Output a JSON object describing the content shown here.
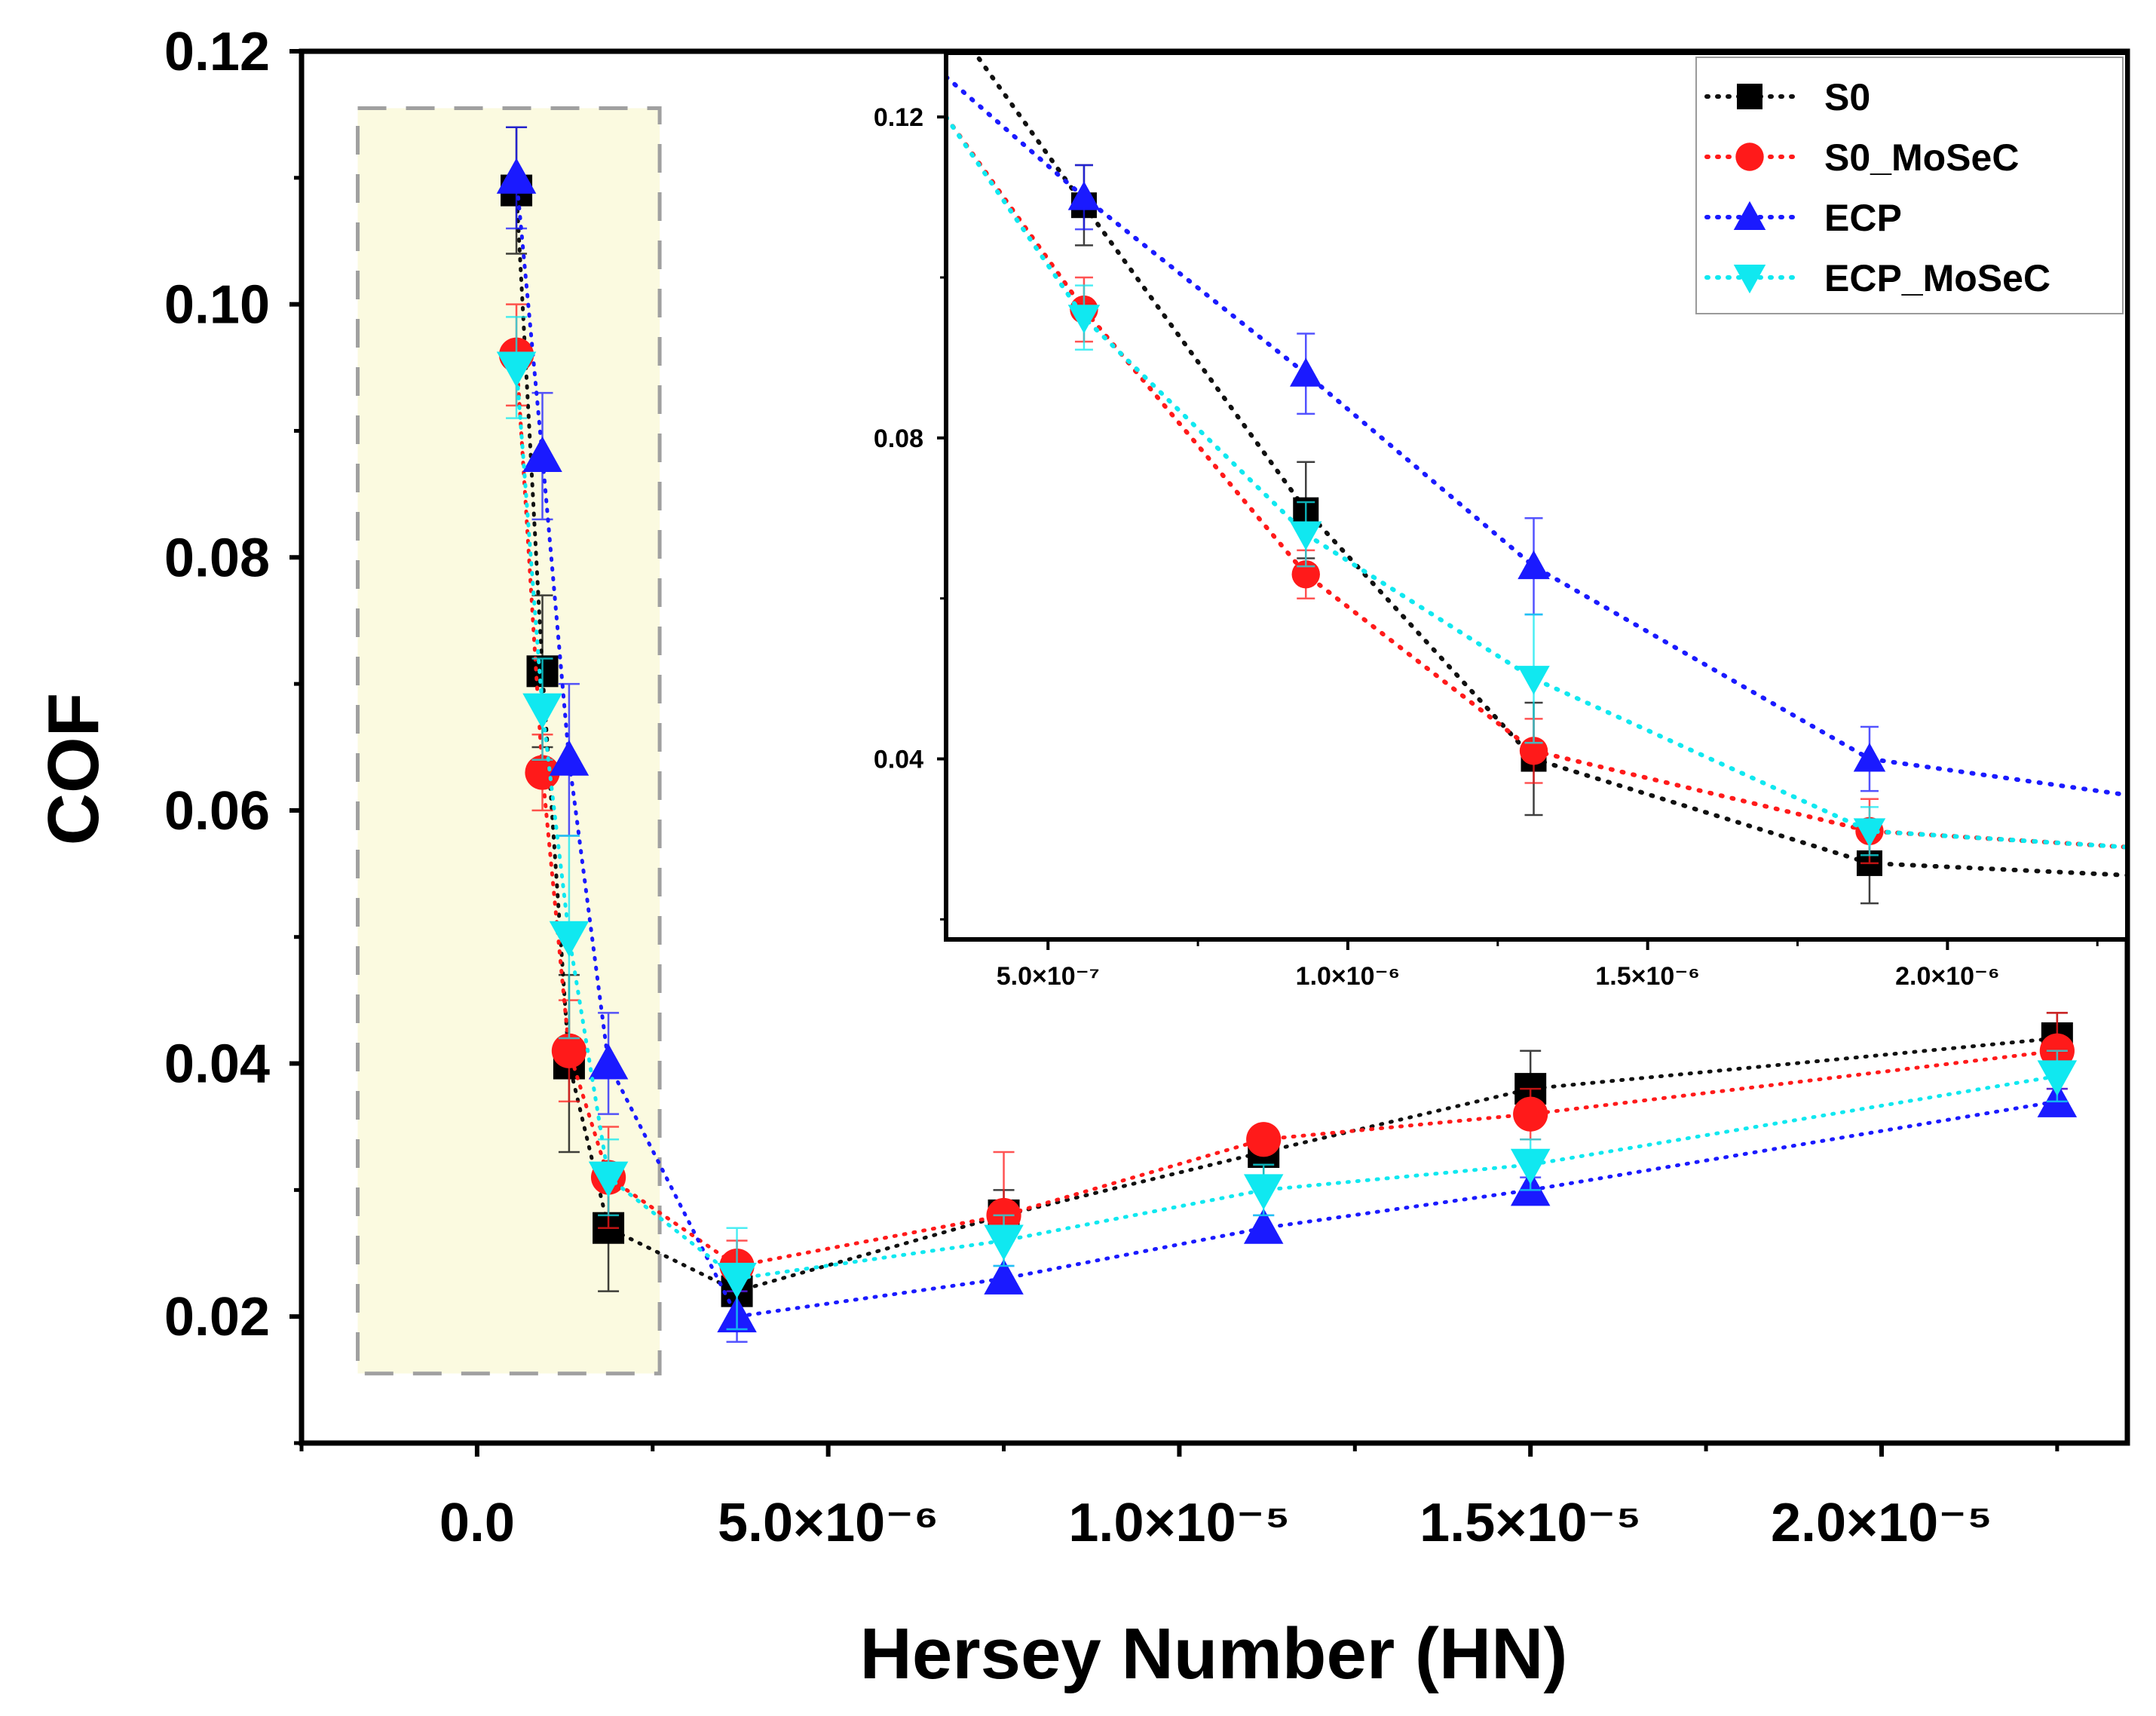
{
  "chart_data": [
    {
      "id": "main",
      "type": "scatter",
      "xlabel": "Hersey Number (HN)",
      "ylabel": "COF",
      "xlim": [
        -2.5e-06,
        2.35e-05
      ],
      "ylim": [
        0.01,
        0.12
      ],
      "xticks": [
        0,
        5e-06,
        1e-05,
        1.5e-05,
        2e-05
      ],
      "xtick_labels": [
        "0.0",
        "5.0×10⁻⁶",
        "1.0×10⁻⁵",
        "1.5×10⁻⁵",
        "2.0×10⁻⁵"
      ],
      "yticks": [
        0.02,
        0.04,
        0.06,
        0.08,
        0.1,
        0.12
      ],
      "ytick_labels": [
        "0.02",
        "0.04",
        "0.06",
        "0.08",
        "0.10",
        "0.12"
      ],
      "highlight_region": {
        "x": [
          -1.7e-06,
          2.6e-06
        ],
        "y": [
          0.0155,
          0.1155
        ],
        "color": "#fbfae0"
      },
      "series": [
        {
          "name": "S0",
          "color": "#000000",
          "marker": "square",
          "line_color": "#111111",
          "x": [
            5.6e-07,
            9.3e-07,
            1.31e-06,
            1.87e-06,
            3.7e-06,
            7.5e-06,
            1.12e-05,
            1.5e-05,
            2.25e-05
          ],
          "y": [
            0.109,
            0.071,
            0.04,
            0.027,
            0.022,
            0.028,
            0.033,
            0.038,
            0.042
          ],
          "err": [
            0.005,
            0.006,
            0.007,
            0.005,
            0.002,
            0.002,
            0.002,
            0.003,
            0.002
          ]
        },
        {
          "name": "S0_MoSeC",
          "color": "#ff1a1a",
          "marker": "circle",
          "line_color": "#ff1a1a",
          "x": [
            5.6e-07,
            9.3e-07,
            1.31e-06,
            1.87e-06,
            3.7e-06,
            7.5e-06,
            1.12e-05,
            1.5e-05,
            2.25e-05
          ],
          "y": [
            0.096,
            0.063,
            0.041,
            0.031,
            0.024,
            0.028,
            0.034,
            0.036,
            0.041
          ],
          "err": [
            0.004,
            0.003,
            0.004,
            0.004,
            0.002,
            0.005,
            0.001,
            0.002,
            0.003
          ]
        },
        {
          "name": "ECP",
          "color": "#1a1aff",
          "marker": "triangle-up",
          "line_color": "#1a1aff",
          "x": [
            5.6e-07,
            9.3e-07,
            1.31e-06,
            1.87e-06,
            3.7e-06,
            7.5e-06,
            1.12e-05,
            1.5e-05,
            2.25e-05
          ],
          "y": [
            0.11,
            0.088,
            0.064,
            0.04,
            0.02,
            0.023,
            0.027,
            0.03,
            0.037
          ],
          "err": [
            0.004,
            0.005,
            0.006,
            0.004,
            0.002,
            0.001,
            0.001,
            0.001,
            0.001
          ]
        },
        {
          "name": "ECP_MoSeC",
          "color": "#10e8f0",
          "marker": "triangle-down",
          "line_color": "#10e8f0",
          "x": [
            5.6e-07,
            9.3e-07,
            1.31e-06,
            1.87e-06,
            3.7e-06,
            7.5e-06,
            1.12e-05,
            1.5e-05,
            2.25e-05
          ],
          "y": [
            0.095,
            0.068,
            0.05,
            0.031,
            0.023,
            0.026,
            0.03,
            0.032,
            0.039
          ],
          "err": [
            0.004,
            0.004,
            0.008,
            0.003,
            0.004,
            0.002,
            0.002,
            0.002,
            0.002
          ]
        }
      ]
    },
    {
      "id": "inset",
      "type": "scatter",
      "xlim": [
        3.3e-07,
        2.3e-06
      ],
      "ylim": [
        0.0175,
        0.128
      ],
      "xticks": [
        5e-07,
        1e-06,
        1.5e-06,
        2e-06
      ],
      "xtick_labels": [
        "5.0×10⁻⁷",
        "1.0×10⁻⁶",
        "1.5×10⁻⁶",
        "2.0×10⁻⁶"
      ],
      "yticks": [
        0.04,
        0.08,
        0.12
      ],
      "ytick_labels": [
        "0.04",
        "0.08",
        "0.12"
      ],
      "legend_position": "top-right",
      "series": [
        {
          "name": "S0",
          "color": "#000000",
          "marker": "square",
          "line_color": "#111111",
          "x": [
            5.6e-07,
            9.3e-07,
            1.31e-06,
            1.87e-06
          ],
          "y": [
            0.109,
            0.071,
            0.04,
            0.027
          ],
          "err": [
            0.005,
            0.006,
            0.007,
            0.005
          ],
          "trend": [
            [
              3.3e-07,
              0.133
            ],
            [
              5.6e-07,
              0.109
            ],
            [
              9.3e-07,
              0.071
            ],
            [
              1.31e-06,
              0.04
            ],
            [
              1.87e-06,
              0.027
            ],
            [
              2.3e-06,
              0.0255
            ]
          ]
        },
        {
          "name": "S0_MoSeC",
          "color": "#ff1a1a",
          "marker": "circle",
          "line_color": "#ff1a1a",
          "x": [
            5.6e-07,
            9.3e-07,
            1.31e-06,
            1.87e-06
          ],
          "y": [
            0.096,
            0.063,
            0.041,
            0.031
          ],
          "err": [
            0.004,
            0.003,
            0.004,
            0.004
          ],
          "trend": [
            [
              3.3e-07,
              0.12
            ],
            [
              5.6e-07,
              0.096
            ],
            [
              9.3e-07,
              0.063
            ],
            [
              1.31e-06,
              0.041
            ],
            [
              1.87e-06,
              0.031
            ],
            [
              2.3e-06,
              0.029
            ]
          ]
        },
        {
          "name": "ECP",
          "color": "#1a1aff",
          "marker": "triangle-up",
          "line_color": "#1a1aff",
          "x": [
            5.6e-07,
            9.3e-07,
            1.31e-06,
            1.87e-06
          ],
          "y": [
            0.11,
            0.088,
            0.064,
            0.04
          ],
          "err": [
            0.004,
            0.005,
            0.006,
            0.004
          ],
          "trend": [
            [
              3.3e-07,
              0.125
            ],
            [
              5.6e-07,
              0.11
            ],
            [
              9.3e-07,
              0.088
            ],
            [
              1.31e-06,
              0.064
            ],
            [
              1.87e-06,
              0.04
            ],
            [
              2.3e-06,
              0.0355
            ]
          ]
        },
        {
          "name": "ECP_MoSeC",
          "color": "#10e8f0",
          "marker": "triangle-down",
          "line_color": "#10e8f0",
          "x": [
            5.6e-07,
            9.3e-07,
            1.31e-06,
            1.87e-06
          ],
          "y": [
            0.095,
            0.068,
            0.05,
            0.031
          ],
          "err": [
            0.004,
            0.004,
            0.008,
            0.003
          ],
          "trend": [
            [
              3.3e-07,
              0.12
            ],
            [
              5.6e-07,
              0.095
            ],
            [
              9.3e-07,
              0.068
            ],
            [
              1.31e-06,
              0.05
            ],
            [
              1.87e-06,
              0.031
            ],
            [
              2.3e-06,
              0.029
            ]
          ]
        }
      ]
    }
  ]
}
